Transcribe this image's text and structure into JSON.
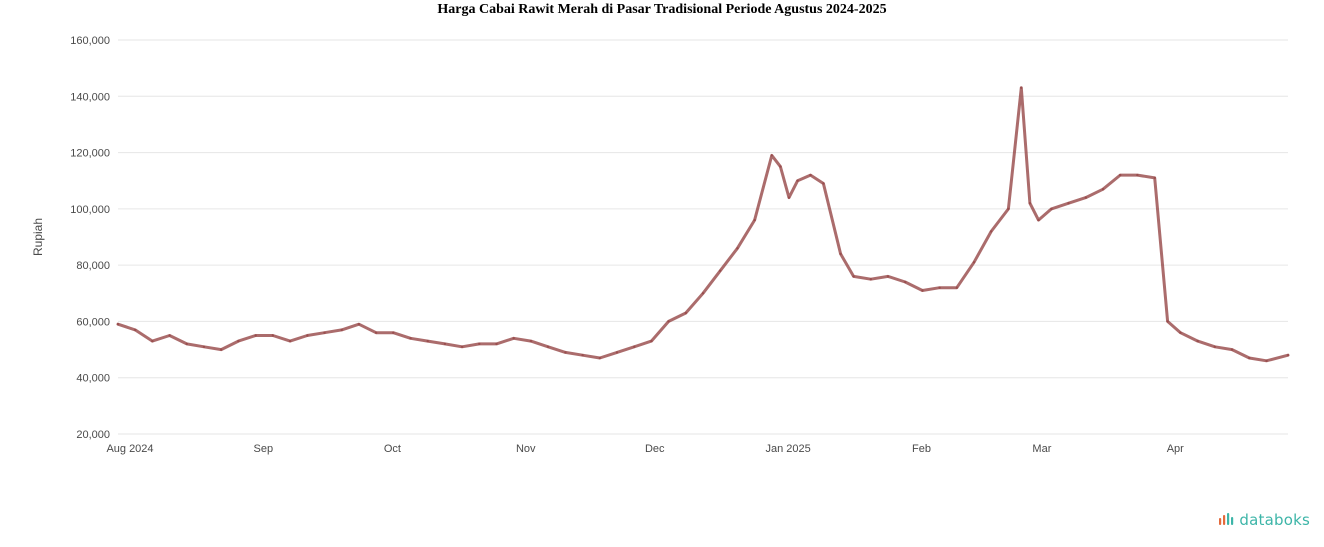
{
  "colors": {
    "line": "#8f3b3b",
    "grid": "#e6e6e6",
    "brand": "#3db5a8",
    "brand_accent": "#e46a3c"
  },
  "brand": {
    "name": "databoks",
    "icon": "databoks-logo-icon"
  },
  "chart_data": {
    "type": "line",
    "title": "Harga Cabai Rawit Merah di Pasar Tradisional Periode Agustus 2024-2025",
    "ylabel": "Rupiah",
    "xlabel": "",
    "ylim": [
      20000,
      160000
    ],
    "yticks": [
      20000,
      40000,
      60000,
      80000,
      100000,
      120000,
      140000,
      160000
    ],
    "ytick_labels": [
      "20,000",
      "40,000",
      "60,000",
      "80,000",
      "100,000",
      "120,000",
      "140,000",
      "160,000"
    ],
    "xlim": [
      "2024-08-01",
      "2025-04-30"
    ],
    "xticks": [
      {
        "date": "2024-08-01",
        "label": "Aug 2024"
      },
      {
        "date": "2024-09-01",
        "label": "Sep"
      },
      {
        "date": "2024-10-01",
        "label": "Oct"
      },
      {
        "date": "2024-11-01",
        "label": "Nov"
      },
      {
        "date": "2024-12-01",
        "label": "Dec"
      },
      {
        "date": "2025-01-01",
        "label": "Jan 2025"
      },
      {
        "date": "2025-02-01",
        "label": "Feb"
      },
      {
        "date": "2025-03-01",
        "label": "Mar"
      },
      {
        "date": "2025-04-01",
        "label": "Apr"
      }
    ],
    "grid": true,
    "legend": "none",
    "series": [
      {
        "x": [
          "2024-08-01",
          "2024-08-05",
          "2024-08-09",
          "2024-08-13",
          "2024-08-17",
          "2024-08-21",
          "2024-08-25",
          "2024-08-29",
          "2024-09-02",
          "2024-09-06",
          "2024-09-10",
          "2024-09-14",
          "2024-09-18",
          "2024-09-22",
          "2024-09-26",
          "2024-09-30",
          "2024-10-04",
          "2024-10-08",
          "2024-10-12",
          "2024-10-16",
          "2024-10-20",
          "2024-10-24",
          "2024-10-28",
          "2024-11-01",
          "2024-11-05",
          "2024-11-09",
          "2024-11-13",
          "2024-11-17",
          "2024-11-21",
          "2024-11-25",
          "2024-11-29",
          "2024-12-03",
          "2024-12-07",
          "2024-12-11",
          "2024-12-15",
          "2024-12-19",
          "2024-12-23",
          "2024-12-27",
          "2024-12-31",
          "2025-01-02",
          "2025-01-04",
          "2025-01-06",
          "2025-01-09",
          "2025-01-12",
          "2025-01-16",
          "2025-01-19",
          "2025-01-23",
          "2025-01-27",
          "2025-01-31",
          "2025-02-04",
          "2025-02-08",
          "2025-02-12",
          "2025-02-16",
          "2025-02-20",
          "2025-02-24",
          "2025-02-27",
          "2025-03-01",
          "2025-03-03",
          "2025-03-06",
          "2025-03-10",
          "2025-03-14",
          "2025-03-18",
          "2025-03-22",
          "2025-03-26",
          "2025-03-30",
          "2025-04-02",
          "2025-04-05",
          "2025-04-09",
          "2025-04-13",
          "2025-04-17",
          "2025-04-21",
          "2025-04-25",
          "2025-04-30"
        ],
        "values": [
          59000,
          57000,
          53000,
          55000,
          52000,
          51000,
          50000,
          53000,
          55000,
          55000,
          53000,
          55000,
          56000,
          57000,
          59000,
          56000,
          56000,
          54000,
          53000,
          52000,
          51000,
          52000,
          52000,
          54000,
          53000,
          51000,
          49000,
          48000,
          47000,
          49000,
          51000,
          53000,
          60000,
          63000,
          70000,
          78000,
          86000,
          96000,
          119000,
          115000,
          104000,
          110000,
          112000,
          109000,
          84000,
          76000,
          75000,
          76000,
          74000,
          71000,
          72000,
          72000,
          81000,
          92000,
          100000,
          143000,
          102000,
          96000,
          100000,
          102000,
          104000,
          107000,
          112000,
          112000,
          111000,
          60000,
          56000,
          53000,
          51000,
          50000,
          47000,
          46000,
          48000
        ]
      }
    ]
  }
}
